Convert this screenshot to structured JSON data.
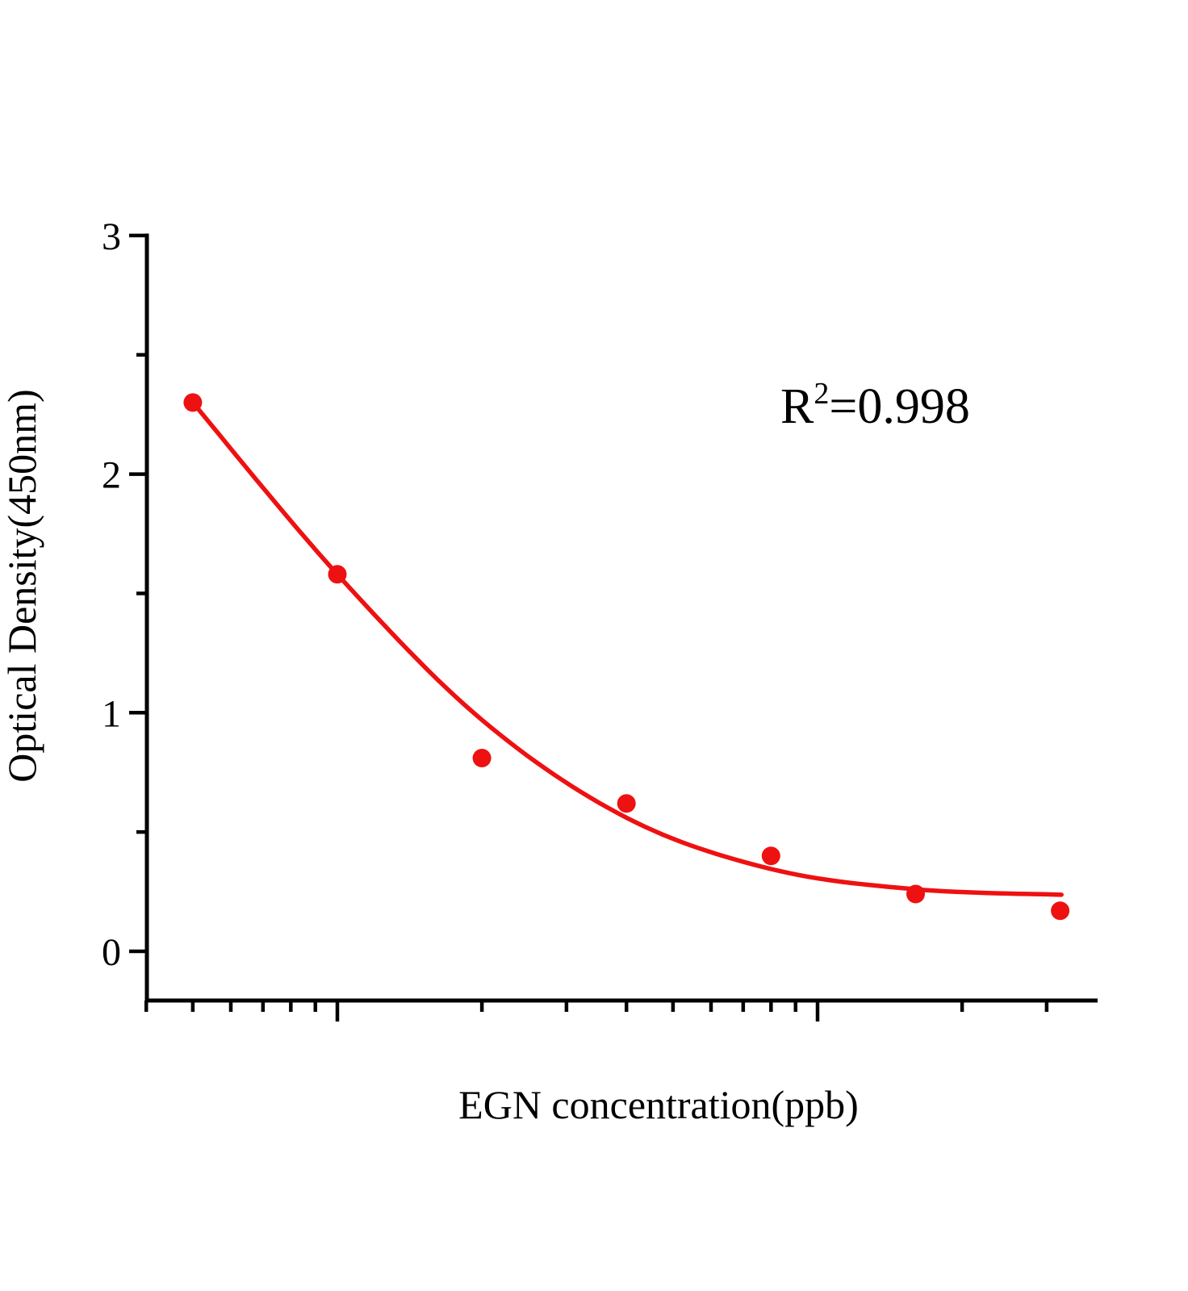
{
  "figure": {
    "background": "#ffffff"
  },
  "chart_data": {
    "type": "scatter",
    "title": "",
    "xlabel": "EGN concentration(ppb)",
    "ylabel": "Optical Density(450nm)",
    "x_scale": "log",
    "xlim_ppb": [
      4,
      385
    ],
    "ylim": [
      -0.2,
      3
    ],
    "grid": "off",
    "legend": "none",
    "y_major_ticks": [
      3,
      2,
      1,
      0
    ],
    "y_minor_ticks": [
      2.5,
      1.5,
      0.5
    ],
    "x_major_ticks": [
      10,
      100
    ],
    "x_minor_ticks": [
      4,
      5,
      6,
      7,
      8,
      9,
      20,
      30,
      40,
      50,
      60,
      70,
      80,
      90,
      200,
      300
    ],
    "x_tick_labels_visible": false,
    "series": [
      {
        "name": "standard points",
        "marker": "circle",
        "x_ppb": [
          5,
          10,
          20,
          40,
          80,
          160,
          320
        ],
        "od_450nm": [
          2.3,
          1.58,
          0.81,
          0.62,
          0.4,
          0.24,
          0.17
        ]
      }
    ],
    "fit_curve": {
      "x_ppb": [
        5,
        10,
        20,
        40,
        80,
        160,
        322
      ],
      "od_450nm": [
        2.3,
        1.58,
        0.97,
        0.56,
        0.345,
        0.26,
        0.237
      ]
    },
    "annotation": {
      "full_text": "R²=0.998",
      "base": "R",
      "superscript": "2",
      "rest": "=0.998",
      "r_squared": 0.998
    }
  },
  "colors": {
    "series_red": "#ee1111",
    "axis": "#000000",
    "background": "#ffffff"
  }
}
